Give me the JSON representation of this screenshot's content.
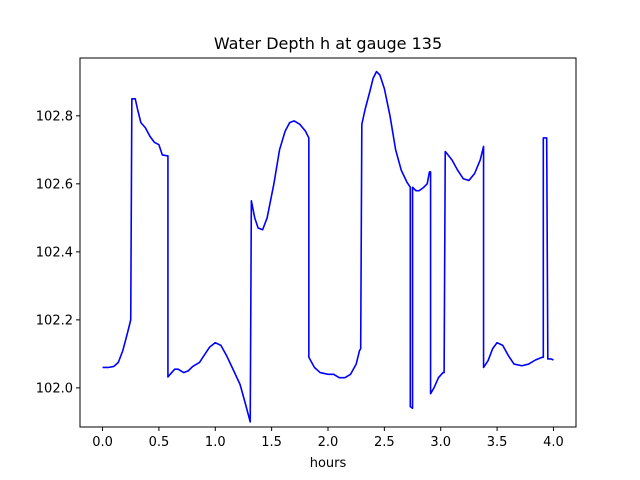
{
  "chart_data": {
    "type": "line",
    "title": "Water Depth h at gauge 135",
    "xlabel": "hours",
    "ylabel": "",
    "xlim": [
      -0.2,
      4.2
    ],
    "ylim": [
      101.885,
      102.97
    ],
    "xticks": [
      "0.0",
      "0.5",
      "1.0",
      "1.5",
      "2.0",
      "2.5",
      "3.0",
      "3.5",
      "4.0"
    ],
    "yticks": [
      "102.0",
      "102.2",
      "102.4",
      "102.6",
      "102.8"
    ],
    "grid": false,
    "series": [
      {
        "color": "#0000ff",
        "points": [
          [
            0.0,
            102.06
          ],
          [
            0.05,
            102.06
          ],
          [
            0.1,
            102.063
          ],
          [
            0.14,
            102.075
          ],
          [
            0.18,
            102.11
          ],
          [
            0.22,
            102.16
          ],
          [
            0.25,
            102.2
          ],
          [
            0.25,
            102.2
          ],
          [
            0.26,
            102.85
          ],
          [
            0.29,
            102.85
          ],
          [
            0.31,
            102.82
          ],
          [
            0.34,
            102.78
          ],
          [
            0.38,
            102.765
          ],
          [
            0.42,
            102.74
          ],
          [
            0.46,
            102.722
          ],
          [
            0.5,
            102.715
          ],
          [
            0.53,
            102.685
          ],
          [
            0.58,
            102.682
          ],
          [
            0.58,
            102.032
          ],
          [
            0.6,
            102.04
          ],
          [
            0.64,
            102.055
          ],
          [
            0.67,
            102.055
          ],
          [
            0.72,
            102.045
          ],
          [
            0.76,
            102.05
          ],
          [
            0.8,
            102.063
          ],
          [
            0.86,
            102.075
          ],
          [
            0.9,
            102.095
          ],
          [
            0.95,
            102.12
          ],
          [
            1.0,
            102.133
          ],
          [
            1.05,
            102.125
          ],
          [
            1.1,
            102.095
          ],
          [
            1.15,
            102.06
          ],
          [
            1.22,
            102.01
          ],
          [
            1.27,
            101.95
          ],
          [
            1.31,
            101.9
          ],
          [
            1.32,
            102.55
          ],
          [
            1.35,
            102.5
          ],
          [
            1.38,
            102.47
          ],
          [
            1.42,
            102.465
          ],
          [
            1.46,
            102.5
          ],
          [
            1.52,
            102.6
          ],
          [
            1.57,
            102.7
          ],
          [
            1.62,
            102.755
          ],
          [
            1.66,
            102.78
          ],
          [
            1.7,
            102.785
          ],
          [
            1.75,
            102.775
          ],
          [
            1.8,
            102.755
          ],
          [
            1.83,
            102.735
          ],
          [
            1.83,
            102.09
          ],
          [
            1.88,
            102.06
          ],
          [
            1.93,
            102.045
          ],
          [
            2.0,
            102.04
          ],
          [
            2.05,
            102.04
          ],
          [
            2.1,
            102.03
          ],
          [
            2.15,
            102.03
          ],
          [
            2.2,
            102.04
          ],
          [
            2.25,
            102.07
          ],
          [
            2.28,
            102.11
          ],
          [
            2.29,
            102.115
          ],
          [
            2.3,
            102.775
          ],
          [
            2.33,
            102.82
          ],
          [
            2.37,
            102.87
          ],
          [
            2.4,
            102.91
          ],
          [
            2.43,
            102.93
          ],
          [
            2.46,
            102.92
          ],
          [
            2.5,
            102.88
          ],
          [
            2.55,
            102.8
          ],
          [
            2.6,
            102.7
          ],
          [
            2.65,
            102.64
          ],
          [
            2.7,
            102.605
          ],
          [
            2.73,
            102.59
          ],
          [
            2.73,
            101.945
          ],
          [
            2.75,
            101.94
          ],
          [
            2.75,
            102.59
          ],
          [
            2.78,
            102.58
          ],
          [
            2.81,
            102.58
          ],
          [
            2.85,
            102.59
          ],
          [
            2.88,
            102.6
          ],
          [
            2.9,
            102.635
          ],
          [
            2.91,
            102.635
          ],
          [
            2.91,
            101.983
          ],
          [
            2.94,
            102.0
          ],
          [
            2.98,
            102.03
          ],
          [
            3.02,
            102.045
          ],
          [
            3.03,
            102.045
          ],
          [
            3.04,
            102.695
          ],
          [
            3.06,
            102.687
          ],
          [
            3.1,
            102.67
          ],
          [
            3.15,
            102.64
          ],
          [
            3.2,
            102.615
          ],
          [
            3.25,
            102.61
          ],
          [
            3.3,
            102.63
          ],
          [
            3.35,
            102.67
          ],
          [
            3.38,
            102.71
          ],
          [
            3.38,
            102.06
          ],
          [
            3.42,
            102.08
          ],
          [
            3.46,
            102.115
          ],
          [
            3.5,
            102.133
          ],
          [
            3.55,
            102.125
          ],
          [
            3.6,
            102.095
          ],
          [
            3.65,
            102.07
          ],
          [
            3.72,
            102.065
          ],
          [
            3.78,
            102.07
          ],
          [
            3.84,
            102.082
          ],
          [
            3.9,
            102.09
          ],
          [
            3.91,
            102.09
          ],
          [
            3.91,
            102.735
          ],
          [
            3.94,
            102.735
          ],
          [
            3.95,
            102.085
          ],
          [
            3.98,
            102.085
          ],
          [
            4.0,
            102.082
          ]
        ]
      }
    ]
  }
}
